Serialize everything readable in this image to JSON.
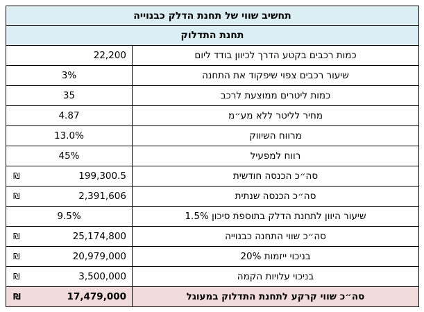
{
  "title": "תחשיב שווי של תחנת הדלק כבנוייה",
  "subtitle": "תחנת התדלוק",
  "currency_symbol": "₪",
  "colors": {
    "header_bg": "#DAEEF3",
    "total_bg": "#F2DCDB",
    "border": "#000000"
  },
  "rows": [
    {
      "label": "כמות רכבים בקטע הדרך לכיוון בודד ליום",
      "value": "22,200",
      "currency": false,
      "align": "right"
    },
    {
      "label": "שיעור רכבים צפוי שיפקוד את התחנה",
      "value": "3%",
      "currency": false,
      "align": "center"
    },
    {
      "label": "כמות ליטרים ממוצעת לרכב",
      "value": "35",
      "currency": false,
      "align": "center"
    },
    {
      "label": "מחיר לליטר ללא מע״מ",
      "value": "4.87",
      "currency": false,
      "align": "center"
    },
    {
      "label": "מרווח השיווק",
      "value": "13.0%",
      "currency": false,
      "align": "center"
    },
    {
      "label": "רווח למפעיל",
      "value": "45%",
      "currency": false,
      "align": "center"
    },
    {
      "label": "סה״כ הכנסה חודשית",
      "value": "199,300.5",
      "currency": true,
      "align": "right"
    },
    {
      "label": "סה״כ הכנסה שנתית",
      "value": "2,391,606",
      "currency": true,
      "align": "right"
    },
    {
      "label": "שיעור היוון לתחנת הדלק בתוספת סיכון  1.5%",
      "value": "9.5%",
      "currency": false,
      "align": "center"
    },
    {
      "label": "סה״כ שווי התחנה כבנוייה",
      "value": "25,174,800",
      "currency": true,
      "align": "right"
    },
    {
      "label": "בניכוי ייזמות 20%",
      "value": "20,979,000",
      "currency": true,
      "align": "right"
    },
    {
      "label": "בניכוי עלויות הקמה",
      "value": "3,500,000",
      "currency": true,
      "align": "right"
    },
    {
      "label": "סה״כ שווי קרקע לתחנת התדלוק במעוגל",
      "value": "17,479,000",
      "currency": true,
      "align": "right",
      "total": true
    }
  ]
}
